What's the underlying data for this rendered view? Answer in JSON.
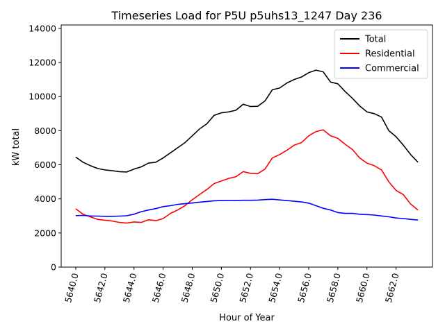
{
  "chart_data": {
    "type": "line",
    "title": "Timeseries Load for P5U p5uhs13_1247  Day 236",
    "xlabel": "Hour of Year",
    "ylabel": "kW total",
    "xlim": [
      5639.0,
      5664.5
    ],
    "ylim": [
      0,
      14200
    ],
    "xticks": [
      5640,
      5642,
      5644,
      5646,
      5648,
      5650,
      5652,
      5654,
      5656,
      5658,
      5660,
      5662
    ],
    "xtick_labels": [
      "5640.0",
      "5642.0",
      "5644.0",
      "5646.0",
      "5648.0",
      "5650.0",
      "5652.0",
      "5654.0",
      "5656.0",
      "5658.0",
      "5660.0",
      "5662.0"
    ],
    "yticks": [
      0,
      2000,
      4000,
      6000,
      8000,
      10000,
      12000,
      14000
    ],
    "ytick_labels": [
      "0",
      "2000",
      "4000",
      "6000",
      "8000",
      "10000",
      "12000",
      "14000"
    ],
    "legend_position": "top-right",
    "series": [
      {
        "name": "Total",
        "color": "#000000",
        "x": [
          5640.0,
          5640.5,
          5641.0,
          5641.5,
          5642.0,
          5642.5,
          5643.0,
          5643.5,
          5644.0,
          5644.5,
          5645.0,
          5645.5,
          5646.0,
          5646.5,
          5647.0,
          5647.5,
          5648.0,
          5648.5,
          5649.0,
          5649.5,
          5650.0,
          5650.5,
          5651.0,
          5651.5,
          5652.0,
          5652.5,
          5653.0,
          5653.5,
          5654.0,
          5654.5,
          5655.0,
          5655.5,
          5656.0,
          5656.5,
          5657.0,
          5657.5,
          5658.0,
          5658.5,
          5659.0,
          5659.5,
          5660.0,
          5660.5,
          5661.0,
          5661.5,
          5662.0,
          5662.5,
          5663.0,
          5663.5
        ],
        "values": [
          6450,
          6150,
          5950,
          5780,
          5700,
          5650,
          5600,
          5580,
          5750,
          5880,
          6100,
          6150,
          6400,
          6700,
          7000,
          7300,
          7700,
          8100,
          8400,
          8900,
          9050,
          9100,
          9200,
          9550,
          9420,
          9430,
          9750,
          10400,
          10500,
          10800,
          11000,
          11150,
          11400,
          11550,
          11450,
          10850,
          10750,
          10300,
          9900,
          9450,
          9100,
          9000,
          8800,
          8000,
          7650,
          7150,
          6600,
          6150
        ]
      },
      {
        "name": "Residential",
        "color": "#ff0000",
        "x": [
          5640.0,
          5640.5,
          5641.0,
          5641.5,
          5642.0,
          5642.5,
          5643.0,
          5643.5,
          5644.0,
          5644.5,
          5645.0,
          5645.5,
          5646.0,
          5646.5,
          5647.0,
          5647.5,
          5648.0,
          5648.5,
          5649.0,
          5649.5,
          5650.0,
          5650.5,
          5651.0,
          5651.5,
          5652.0,
          5652.5,
          5653.0,
          5653.5,
          5654.0,
          5654.5,
          5655.0,
          5655.5,
          5656.0,
          5656.5,
          5657.0,
          5657.5,
          5658.0,
          5658.5,
          5659.0,
          5659.5,
          5660.0,
          5660.5,
          5661.0,
          5661.5,
          5662.0,
          5662.5,
          5663.0,
          5663.5
        ],
        "values": [
          3420,
          3100,
          2950,
          2800,
          2750,
          2700,
          2620,
          2580,
          2650,
          2620,
          2780,
          2720,
          2850,
          3150,
          3350,
          3600,
          3950,
          4250,
          4550,
          4900,
          5050,
          5200,
          5300,
          5600,
          5500,
          5480,
          5750,
          6400,
          6600,
          6850,
          7150,
          7300,
          7700,
          7950,
          8050,
          7700,
          7550,
          7200,
          6900,
          6400,
          6100,
          5950,
          5700,
          5000,
          4500,
          4250,
          3700,
          3350
        ]
      },
      {
        "name": "Commercial",
        "color": "#0000ff",
        "x": [
          5640.0,
          5640.5,
          5641.0,
          5641.5,
          5642.0,
          5642.5,
          5643.0,
          5643.5,
          5644.0,
          5644.5,
          5645.0,
          5645.5,
          5646.0,
          5646.5,
          5647.0,
          5647.5,
          5648.0,
          5648.5,
          5649.0,
          5649.5,
          5650.0,
          5650.5,
          5651.0,
          5651.5,
          5652.0,
          5652.5,
          5653.0,
          5653.5,
          5654.0,
          5654.5,
          5655.0,
          5655.5,
          5656.0,
          5656.5,
          5657.0,
          5657.5,
          5658.0,
          5658.5,
          5659.0,
          5659.5,
          5660.0,
          5660.5,
          5661.0,
          5661.5,
          5662.0,
          5662.5,
          5663.0,
          5663.5
        ],
        "values": [
          3020,
          3030,
          3000,
          2990,
          2980,
          2980,
          2990,
          3010,
          3100,
          3250,
          3350,
          3430,
          3550,
          3600,
          3680,
          3720,
          3760,
          3810,
          3850,
          3890,
          3900,
          3910,
          3910,
          3920,
          3920,
          3930,
          3960,
          3980,
          3940,
          3900,
          3860,
          3820,
          3750,
          3600,
          3450,
          3350,
          3200,
          3150,
          3150,
          3100,
          3080,
          3050,
          3000,
          2950,
          2880,
          2850,
          2800,
          2760
        ]
      }
    ]
  }
}
